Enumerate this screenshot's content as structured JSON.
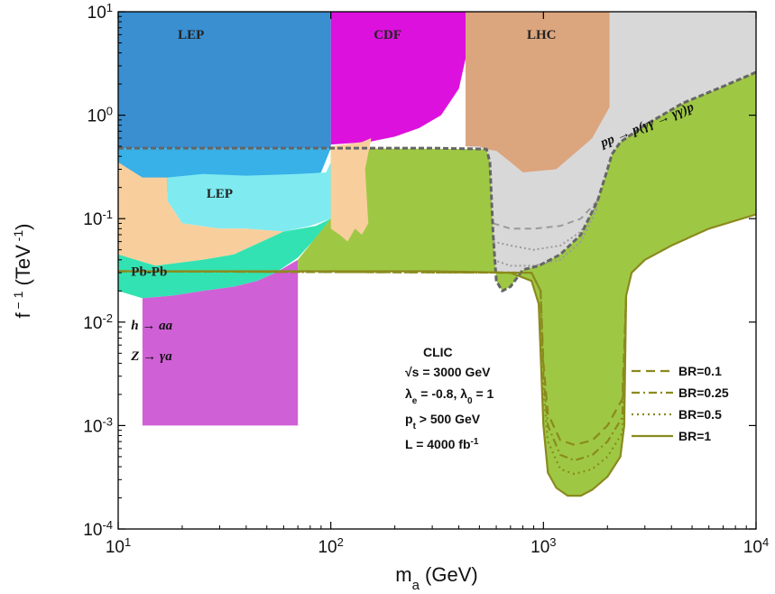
{
  "chart_data": {
    "type": "area",
    "xlabel": "m",
    "xlabel_sub": "a",
    "xlabel_unit": " (GeV)",
    "ylabel": "f",
    "ylabel_sup": " − 1",
    "ylabel_unit": " (TeV",
    "ylabel_unit_sup": " -1",
    "ylabel_close": ")",
    "xscale": "log",
    "yscale": "log",
    "xlim": [
      10,
      10000
    ],
    "ylim": [
      0.0001,
      10
    ],
    "x_ticks": [
      {
        "base": "10",
        "exp": "1",
        "value": 10
      },
      {
        "base": "10",
        "exp": "2",
        "value": 100
      },
      {
        "base": "10",
        "exp": "3",
        "value": 1000
      },
      {
        "base": "10",
        "exp": "4",
        "value": 10000
      }
    ],
    "y_ticks": [
      {
        "base": "10",
        "exp": "-4",
        "value": 0.0001
      },
      {
        "base": "10",
        "exp": "-3",
        "value": 0.001
      },
      {
        "base": "10",
        "exp": "-2",
        "value": 0.01
      },
      {
        "base": "10",
        "exp": "-1",
        "value": 0.1
      },
      {
        "base": "10",
        "exp": "0",
        "value": 1
      },
      {
        "base": "10",
        "exp": "1",
        "value": 10
      }
    ],
    "regions": [
      {
        "name": "LEP",
        "color": "#3a8fd0",
        "label_at": [
          22,
          5.5
        ],
        "points": [
          [
            10,
            10
          ],
          [
            100,
            10
          ],
          [
            100,
            0.48
          ],
          [
            10,
            0.48
          ]
        ]
      },
      {
        "name": "CDF",
        "color": "#dd11dd",
        "label_at": [
          185,
          5.5
        ],
        "points": [
          [
            100,
            10
          ],
          [
            430,
            10
          ],
          [
            430,
            3.5
          ],
          [
            400,
            1.8
          ],
          [
            330,
            1.0
          ],
          [
            260,
            0.75
          ],
          [
            200,
            0.62
          ],
          [
            150,
            0.55
          ],
          [
            100,
            0.52
          ]
        ]
      },
      {
        "name": "LHC",
        "color": "#dba57e",
        "label_at": [
          980,
          5.5
        ],
        "points": [
          [
            430,
            10
          ],
          [
            2050,
            10
          ],
          [
            2050,
            1.2
          ],
          [
            1700,
            0.6
          ],
          [
            1400,
            0.4
          ],
          [
            1150,
            0.3
          ],
          [
            950,
            0.26
          ],
          [
            800,
            0.28
          ],
          [
            700,
            0.35
          ],
          [
            600,
            0.45
          ],
          [
            500,
            0.48
          ],
          [
            430,
            0.5
          ]
        ]
      },
      {
        "name": "pp",
        "color": "#d8d8d8",
        "points": [
          [
            2050,
            10
          ],
          [
            10000,
            10
          ],
          [
            10000,
            2.6
          ],
          [
            7000,
            1.9
          ],
          [
            4500,
            1.3
          ],
          [
            3000,
            0.8
          ],
          [
            2300,
            0.55
          ],
          [
            2100,
            0.42
          ],
          [
            2000,
            0.3
          ],
          [
            1800,
            0.15
          ],
          [
            1500,
            0.07
          ],
          [
            1200,
            0.045
          ],
          [
            950,
            0.035
          ],
          [
            800,
            0.032
          ],
          [
            700,
            0.022
          ],
          [
            640,
            0.02
          ],
          [
            600,
            0.025
          ],
          [
            580,
            0.07
          ],
          [
            560,
            0.35
          ],
          [
            540,
            0.47
          ],
          [
            500,
            0.5
          ],
          [
            430,
            0.5
          ],
          [
            600,
            0.45
          ],
          [
            800,
            0.28
          ],
          [
            1150,
            0.3
          ],
          [
            1700,
            0.6
          ],
          [
            2050,
            1.2
          ]
        ]
      },
      {
        "name": "LEP",
        "color": "#38b0e8",
        "label_at": [
          30,
          0.16
        ],
        "points": [
          [
            10,
            0.48
          ],
          [
            100,
            0.48
          ],
          [
            90,
            0.28
          ],
          [
            70,
            0.25
          ],
          [
            50,
            0.22
          ],
          [
            30,
            0.2
          ],
          [
            20,
            0.18
          ],
          [
            10,
            0.2
          ]
        ]
      },
      {
        "name": "LEP",
        "color": "#7feaf0",
        "label_at": [
          30,
          0.16
        ],
        "points": [
          [
            17,
            0.25
          ],
          [
            25,
            0.27
          ],
          [
            40,
            0.26
          ],
          [
            70,
            0.27
          ],
          [
            95,
            0.28
          ],
          [
            100,
            0.35
          ],
          [
            100,
            0.1
          ],
          [
            80,
            0.085
          ],
          [
            60,
            0.075
          ],
          [
            40,
            0.08
          ],
          [
            30,
            0.08
          ],
          [
            20,
            0.09
          ],
          [
            17,
            0.15
          ]
        ]
      },
      {
        "name": "Pb-Pb-bg",
        "color": "#f8cf9c",
        "points": [
          [
            10,
            0.35
          ],
          [
            13,
            0.25
          ],
          [
            17,
            0.25
          ],
          [
            17,
            0.15
          ],
          [
            20,
            0.09
          ],
          [
            30,
            0.08
          ],
          [
            40,
            0.08
          ],
          [
            60,
            0.075
          ],
          [
            35,
            0.045
          ],
          [
            25,
            0.04
          ],
          [
            15,
            0.035
          ],
          [
            10,
            0.045
          ]
        ]
      },
      {
        "name": "Pb-Pb",
        "color": "#32e2b2",
        "label_at": [
          11.5,
          0.028
        ],
        "points": [
          [
            10,
            0.045
          ],
          [
            15,
            0.035
          ],
          [
            25,
            0.04
          ],
          [
            35,
            0.045
          ],
          [
            60,
            0.075
          ],
          [
            85,
            0.085
          ],
          [
            100,
            0.1
          ],
          [
            85,
            0.065
          ],
          [
            70,
            0.042
          ],
          [
            55,
            0.03
          ],
          [
            45,
            0.025
          ],
          [
            35,
            0.022
          ],
          [
            25,
            0.02
          ],
          [
            18,
            0.018
          ],
          [
            13,
            0.017
          ],
          [
            10,
            0.02
          ]
        ]
      },
      {
        "name": "h-aa",
        "color": "#d060d6",
        "points": [
          [
            13,
            0.017
          ],
          [
            18,
            0.018
          ],
          [
            25,
            0.02
          ],
          [
            35,
            0.022
          ],
          [
            45,
            0.025
          ],
          [
            55,
            0.03
          ],
          [
            70,
            0.04
          ],
          [
            70,
            0.001
          ],
          [
            13,
            0.001
          ]
        ]
      },
      {
        "name": "CLIC",
        "color": "#9ec843",
        "points": [
          [
            70,
            0.04
          ],
          [
            100,
            0.1
          ],
          [
            100,
            0.48
          ],
          [
            540,
            0.47
          ],
          [
            560,
            0.35
          ],
          [
            580,
            0.07
          ],
          [
            600,
            0.025
          ],
          [
            640,
            0.02
          ],
          [
            700,
            0.022
          ],
          [
            800,
            0.032
          ],
          [
            950,
            0.035
          ],
          [
            1200,
            0.045
          ],
          [
            1500,
            0.07
          ],
          [
            1800,
            0.15
          ],
          [
            2000,
            0.3
          ],
          [
            2100,
            0.42
          ],
          [
            2300,
            0.55
          ],
          [
            3000,
            0.8
          ],
          [
            4500,
            1.3
          ],
          [
            7000,
            1.9
          ],
          [
            10000,
            2.6
          ],
          [
            10000,
            0.11
          ],
          [
            6000,
            0.08
          ],
          [
            4000,
            0.055
          ],
          [
            3000,
            0.04
          ],
          [
            2600,
            0.03
          ],
          [
            2450,
            0.018
          ],
          [
            2400,
            0.001
          ],
          [
            2300,
            0.0005
          ],
          [
            2000,
            0.00032
          ],
          [
            1700,
            0.00024
          ],
          [
            1500,
            0.00021
          ],
          [
            1300,
            0.00021
          ],
          [
            1150,
            0.00025
          ],
          [
            1050,
            0.00035
          ],
          [
            1000,
            0.001
          ],
          [
            950,
            0.015
          ],
          [
            880,
            0.025
          ],
          [
            700,
            0.03
          ],
          [
            300,
            0.031
          ],
          [
            70,
            0.031
          ]
        ]
      },
      {
        "name": "peach-strips",
        "color": "#f8cf9c",
        "points": [
          [
            100,
            0.5
          ],
          [
            140,
            0.55
          ],
          [
            155,
            0.6
          ],
          [
            145,
            0.3
          ],
          [
            150,
            0.09
          ],
          [
            140,
            0.07
          ],
          [
            130,
            0.08
          ],
          [
            120,
            0.06
          ],
          [
            110,
            0.07
          ],
          [
            100,
            0.08
          ]
        ]
      }
    ],
    "series": [
      {
        "name": "BR=0.1",
        "color": "#8a8a1e",
        "dash": "10,6",
        "points": [
          [
            10,
            0.031
          ],
          [
            880,
            0.03
          ],
          [
            970,
            0.02
          ],
          [
            1000,
            0.004
          ],
          [
            1050,
            0.0013
          ],
          [
            1200,
            0.00072
          ],
          [
            1400,
            0.00065
          ],
          [
            1700,
            0.00072
          ],
          [
            2000,
            0.001
          ],
          [
            2350,
            0.0018
          ],
          [
            2450,
            0.018
          ]
        ]
      },
      {
        "name": "BR=0.25",
        "color": "#8a8a1e",
        "dash": "9,4,2,4",
        "points": [
          [
            10,
            0.031
          ],
          [
            880,
            0.03
          ],
          [
            970,
            0.02
          ],
          [
            1000,
            0.003
          ],
          [
            1050,
            0.001
          ],
          [
            1200,
            0.00052
          ],
          [
            1400,
            0.00046
          ],
          [
            1700,
            0.00052
          ],
          [
            2000,
            0.0007
          ],
          [
            2350,
            0.0012
          ],
          [
            2450,
            0.018
          ]
        ]
      },
      {
        "name": "BR=0.5",
        "color": "#8a8a1e",
        "dash": "2,4",
        "points": [
          [
            10,
            0.031
          ],
          [
            880,
            0.03
          ],
          [
            970,
            0.02
          ],
          [
            1000,
            0.0022
          ],
          [
            1050,
            0.0007
          ],
          [
            1200,
            0.00038
          ],
          [
            1400,
            0.00034
          ],
          [
            1700,
            0.00038
          ],
          [
            2000,
            0.0005
          ],
          [
            2350,
            0.00085
          ],
          [
            2450,
            0.018
          ]
        ]
      },
      {
        "name": "BR=1",
        "color": "#8a8a1e",
        "dash": "",
        "points": [
          [
            10,
            0.031
          ],
          [
            300,
            0.031
          ],
          [
            700,
            0.03
          ],
          [
            880,
            0.025
          ],
          [
            950,
            0.015
          ],
          [
            1000,
            0.001
          ],
          [
            1050,
            0.00035
          ],
          [
            1150,
            0.00025
          ],
          [
            1300,
            0.00021
          ],
          [
            1500,
            0.00021
          ],
          [
            1700,
            0.00024
          ],
          [
            2000,
            0.00032
          ],
          [
            2300,
            0.0005
          ],
          [
            2400,
            0.001
          ],
          [
            2450,
            0.018
          ],
          [
            2600,
            0.03
          ],
          [
            3000,
            0.04
          ],
          [
            4000,
            0.055
          ],
          [
            6000,
            0.08
          ],
          [
            10000,
            0.11
          ]
        ]
      }
    ],
    "pp_bound": {
      "color": "#666666",
      "points": [
        [
          10,
          0.48
        ],
        [
          300,
          0.48
        ],
        [
          540,
          0.47
        ],
        [
          560,
          0.35
        ],
        [
          580,
          0.07
        ],
        [
          600,
          0.025
        ],
        [
          640,
          0.02
        ],
        [
          700,
          0.022
        ],
        [
          800,
          0.032
        ],
        [
          950,
          0.035
        ],
        [
          1200,
          0.045
        ],
        [
          1500,
          0.07
        ],
        [
          1800,
          0.15
        ],
        [
          2000,
          0.3
        ],
        [
          2100,
          0.42
        ],
        [
          2300,
          0.55
        ],
        [
          3000,
          0.8
        ],
        [
          4500,
          1.3
        ],
        [
          7000,
          1.9
        ],
        [
          10000,
          2.6
        ]
      ]
    },
    "pp_inner": [
      {
        "dash": "7,5",
        "points": [
          [
            580,
            0.09
          ],
          [
            700,
            0.08
          ],
          [
            900,
            0.08
          ],
          [
            1200,
            0.085
          ],
          [
            1500,
            0.1
          ],
          [
            1800,
            0.15
          ]
        ]
      },
      {
        "dash": "2,3",
        "points": [
          [
            580,
            0.06
          ],
          [
            700,
            0.055
          ],
          [
            900,
            0.05
          ],
          [
            1200,
            0.055
          ],
          [
            1500,
            0.075
          ],
          [
            1800,
            0.14
          ]
        ]
      },
      {
        "dash": "2,3",
        "points": [
          [
            580,
            0.04
          ],
          [
            700,
            0.035
          ],
          [
            900,
            0.035
          ],
          [
            1200,
            0.04
          ],
          [
            1500,
            0.06
          ],
          [
            1800,
            0.13
          ]
        ]
      }
    ],
    "annotations": {
      "lep_top": "LEP",
      "cdf": "CDF",
      "lhc": "LHC",
      "lep_mid": "LEP",
      "pbpb": "Pb-Pb",
      "h_aa": "h → aa",
      "z_ga": "Z → γa",
      "pp_label": "pp → p(γγ → γγ)p"
    },
    "clic_params": {
      "line1": "CLIC",
      "line2": "√s = 3000 GeV",
      "line3_a": "λ",
      "line3_a_sub": "e",
      "line3_b": " = -0.8, ",
      "line3_c": "λ",
      "line3_c_sub": "0",
      "line3_d": " = 1",
      "line4_a": "p",
      "line4_a_sub": "t",
      "line4_b": " > 500 GeV",
      "line5_a": "L = 4000 fb",
      "line5_sup": "-1"
    },
    "legend": {
      "placement": "bottom-right",
      "entries": [
        "BR=0.1",
        "BR=0.25",
        "BR=0.5",
        "BR=1"
      ]
    }
  }
}
